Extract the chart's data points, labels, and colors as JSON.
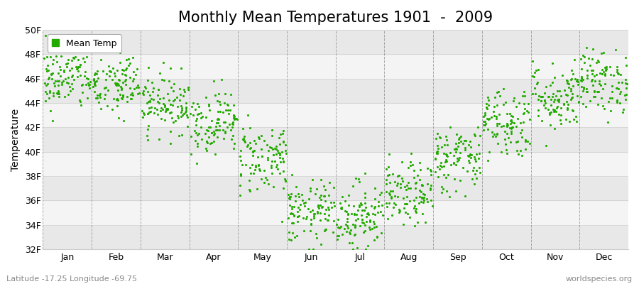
{
  "title": "Monthly Mean Temperatures 1901  -  2009",
  "ylabel": "Temperature",
  "xlabel_labels": [
    "Jan",
    "Feb",
    "Mar",
    "Apr",
    "May",
    "Jun",
    "Jul",
    "Aug",
    "Sep",
    "Oct",
    "Nov",
    "Dec"
  ],
  "ylim": [
    32,
    50
  ],
  "yticks": [
    32,
    34,
    36,
    38,
    40,
    42,
    44,
    46,
    48,
    50
  ],
  "ytick_labels": [
    "32F",
    "34F",
    "36F",
    "38F",
    "40F",
    "42F",
    "44F",
    "46F",
    "48F",
    "50F"
  ],
  "dot_color": "#22aa00",
  "background_color": "#ffffff",
  "stripe_color_dark": "#e8e8e8",
  "stripe_color_light": "#f4f4f4",
  "grid_color": "#777777",
  "title_fontsize": 15,
  "axis_fontsize": 10,
  "tick_fontsize": 9,
  "legend_label": "Mean Temp",
  "footer_left": "Latitude -17.25 Longitude -69.75",
  "footer_right": "worldspecies.org",
  "monthly_means": [
    46.0,
    45.5,
    44.0,
    42.5,
    39.5,
    35.0,
    34.8,
    36.5,
    39.5,
    42.5,
    44.5,
    45.8
  ],
  "monthly_stds": [
    1.3,
    1.4,
    1.2,
    1.3,
    1.5,
    1.3,
    1.4,
    1.3,
    1.4,
    1.5,
    1.4,
    1.3
  ],
  "n_years": 109,
  "seed": 42,
  "dot_size": 5
}
